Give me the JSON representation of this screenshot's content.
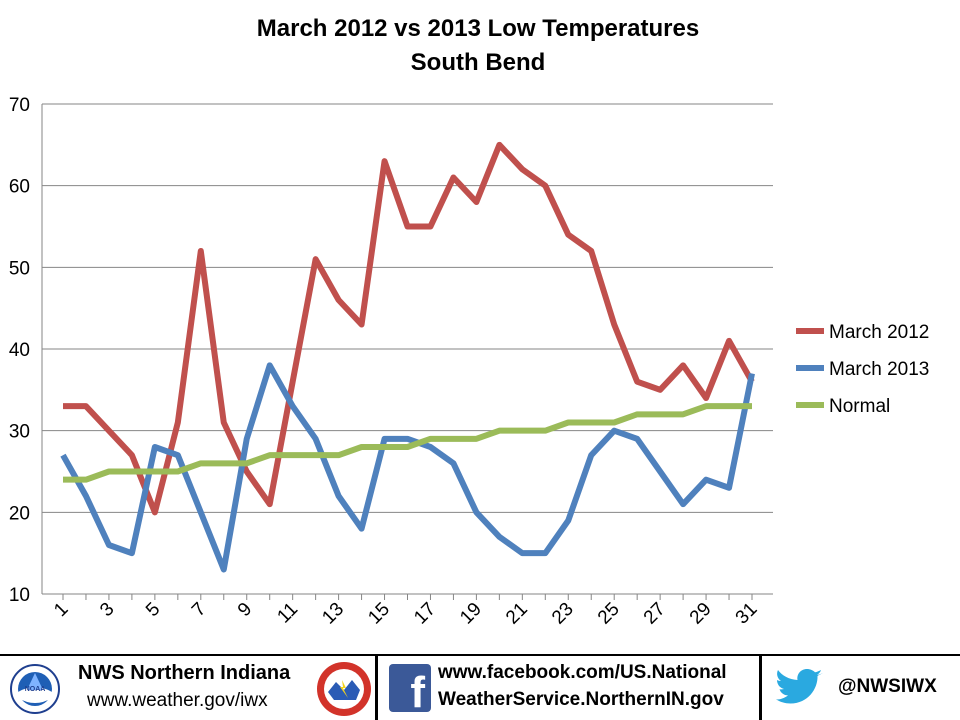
{
  "chart_data": {
    "type": "line",
    "title": "March 2012 vs 2013 Low Temperatures",
    "subtitle": "South Bend",
    "xlabel": "",
    "ylabel": "",
    "ylim": [
      10,
      70
    ],
    "yticks": [
      "10",
      "20",
      "30",
      "40",
      "50",
      "60",
      "70"
    ],
    "x": [
      1,
      2,
      3,
      4,
      5,
      6,
      7,
      8,
      9,
      10,
      11,
      12,
      13,
      14,
      15,
      16,
      17,
      18,
      19,
      20,
      21,
      22,
      23,
      24,
      25,
      26,
      27,
      28,
      29,
      30,
      31
    ],
    "xtick_labels": [
      "1",
      "3",
      "5",
      "7",
      "9",
      "11",
      "13",
      "15",
      "17",
      "19",
      "21",
      "23",
      "25",
      "27",
      "29",
      "31"
    ],
    "grid": "horizontal",
    "legend_position": "right",
    "series": [
      {
        "name": "March 2012",
        "color": "#c0504d",
        "values": [
          33,
          33,
          30,
          27,
          20,
          31,
          52,
          31,
          25,
          21,
          36,
          51,
          46,
          43,
          63,
          55,
          55,
          61,
          58,
          65,
          62,
          60,
          54,
          52,
          43,
          36,
          35,
          38,
          34,
          41,
          36
        ]
      },
      {
        "name": "March 2013",
        "color": "#4f81bd",
        "values": [
          27,
          22,
          16,
          15,
          28,
          27,
          20,
          13,
          29,
          38,
          33,
          29,
          22,
          18,
          29,
          29,
          28,
          26,
          20,
          17,
          15,
          15,
          19,
          27,
          30,
          29,
          25,
          21,
          24,
          23,
          37
        ]
      },
      {
        "name": "Normal",
        "color": "#9bbb59",
        "values": [
          24,
          24,
          25,
          25,
          25,
          25,
          26,
          26,
          26,
          27,
          27,
          27,
          27,
          28,
          28,
          28,
          29,
          29,
          29,
          30,
          30,
          30,
          31,
          31,
          31,
          32,
          32,
          32,
          33,
          33,
          33
        ]
      }
    ]
  },
  "footer": {
    "office_name": "NWS Northern Indiana",
    "office_url": "www.weather.gov/iwx",
    "noaa_logo_text": "NOAA",
    "facebook_line1": "www.facebook.com/US.National",
    "facebook_line2": "WeatherService.NorthernIN.gov",
    "twitter_handle": "@NWSIWX",
    "icons": [
      "noaa-logo",
      "nws-logo",
      "facebook-icon",
      "twitter-icon"
    ]
  }
}
